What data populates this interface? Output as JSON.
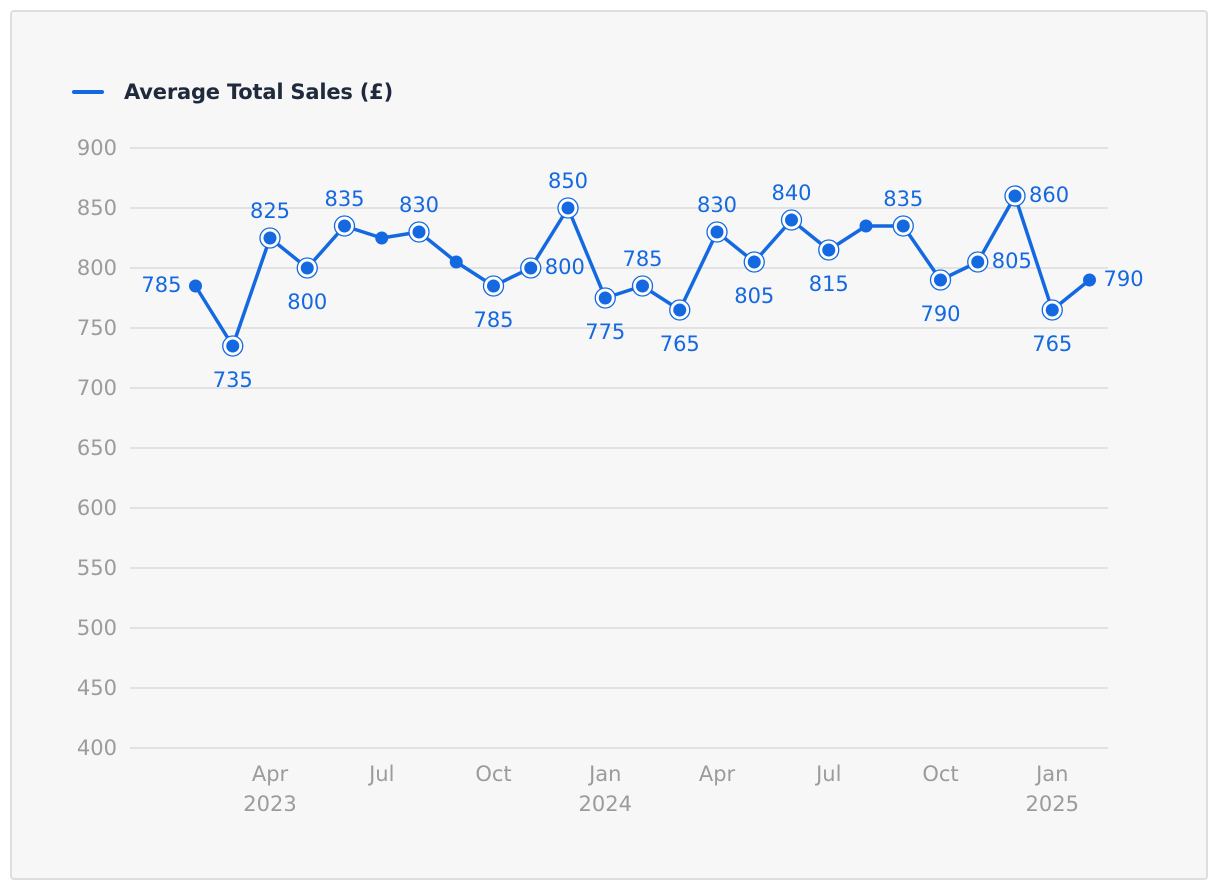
{
  "legend": {
    "label": "Average Total Sales (£)"
  },
  "colors": {
    "series": "#1469e0",
    "grid": "#dcdcdc",
    "axis_text": "#9b9b9b",
    "background": "#f7f7f7"
  },
  "chart_data": {
    "type": "line",
    "x": [
      "2023-02",
      "2023-03",
      "2023-04",
      "2023-05",
      "2023-06",
      "2023-07",
      "2023-08",
      "2023-09",
      "2023-10",
      "2023-11",
      "2023-12",
      "2024-01",
      "2024-02",
      "2024-03",
      "2024-04",
      "2024-05",
      "2024-06",
      "2024-07",
      "2024-08",
      "2024-09",
      "2024-10",
      "2024-11",
      "2024-12",
      "2025-01",
      "2025-02"
    ],
    "series": [
      {
        "name": "Average Total Sales (£)",
        "values": [
          785,
          735,
          825,
          800,
          835,
          825,
          830,
          805,
          785,
          800,
          850,
          775,
          785,
          765,
          830,
          805,
          840,
          815,
          835,
          835,
          790,
          805,
          860,
          765,
          790
        ]
      }
    ],
    "data_labels": [
      785,
      735,
      825,
      800,
      835,
      null,
      830,
      null,
      785,
      800,
      850,
      775,
      785,
      765,
      830,
      805,
      840,
      815,
      null,
      835,
      790,
      805,
      860,
      765,
      790
    ],
    "label_position": [
      "left",
      "below",
      "above",
      "below",
      "above",
      null,
      "above",
      null,
      "below",
      "right",
      "above",
      "below",
      "above",
      "below",
      "above",
      "below",
      "above",
      "below",
      null,
      "above",
      "below",
      "right",
      "right",
      "below",
      "right"
    ],
    "ringed_points": [
      false,
      true,
      true,
      true,
      true,
      false,
      true,
      false,
      true,
      true,
      true,
      true,
      true,
      true,
      true,
      true,
      true,
      true,
      false,
      true,
      true,
      true,
      true,
      true,
      false
    ],
    "ylim": [
      400,
      900
    ],
    "yticks": [
      "900",
      "850",
      "800",
      "750",
      "700",
      "650",
      "600",
      "550",
      "500",
      "450",
      "400"
    ],
    "xticks": [
      {
        "x": "2023-04",
        "label": "Apr",
        "year": "2023"
      },
      {
        "x": "2023-07",
        "label": "Jul",
        "year": ""
      },
      {
        "x": "2023-10",
        "label": "Oct",
        "year": ""
      },
      {
        "x": "2024-01",
        "label": "Jan",
        "year": "2024"
      },
      {
        "x": "2024-04",
        "label": "Apr",
        "year": ""
      },
      {
        "x": "2024-07",
        "label": "Jul",
        "year": ""
      },
      {
        "x": "2024-10",
        "label": "Oct",
        "year": ""
      },
      {
        "x": "2025-01",
        "label": "Jan",
        "year": "2025"
      }
    ],
    "title": "",
    "xlabel": "",
    "ylabel": "",
    "grid": true,
    "legend_position": "top-left"
  }
}
